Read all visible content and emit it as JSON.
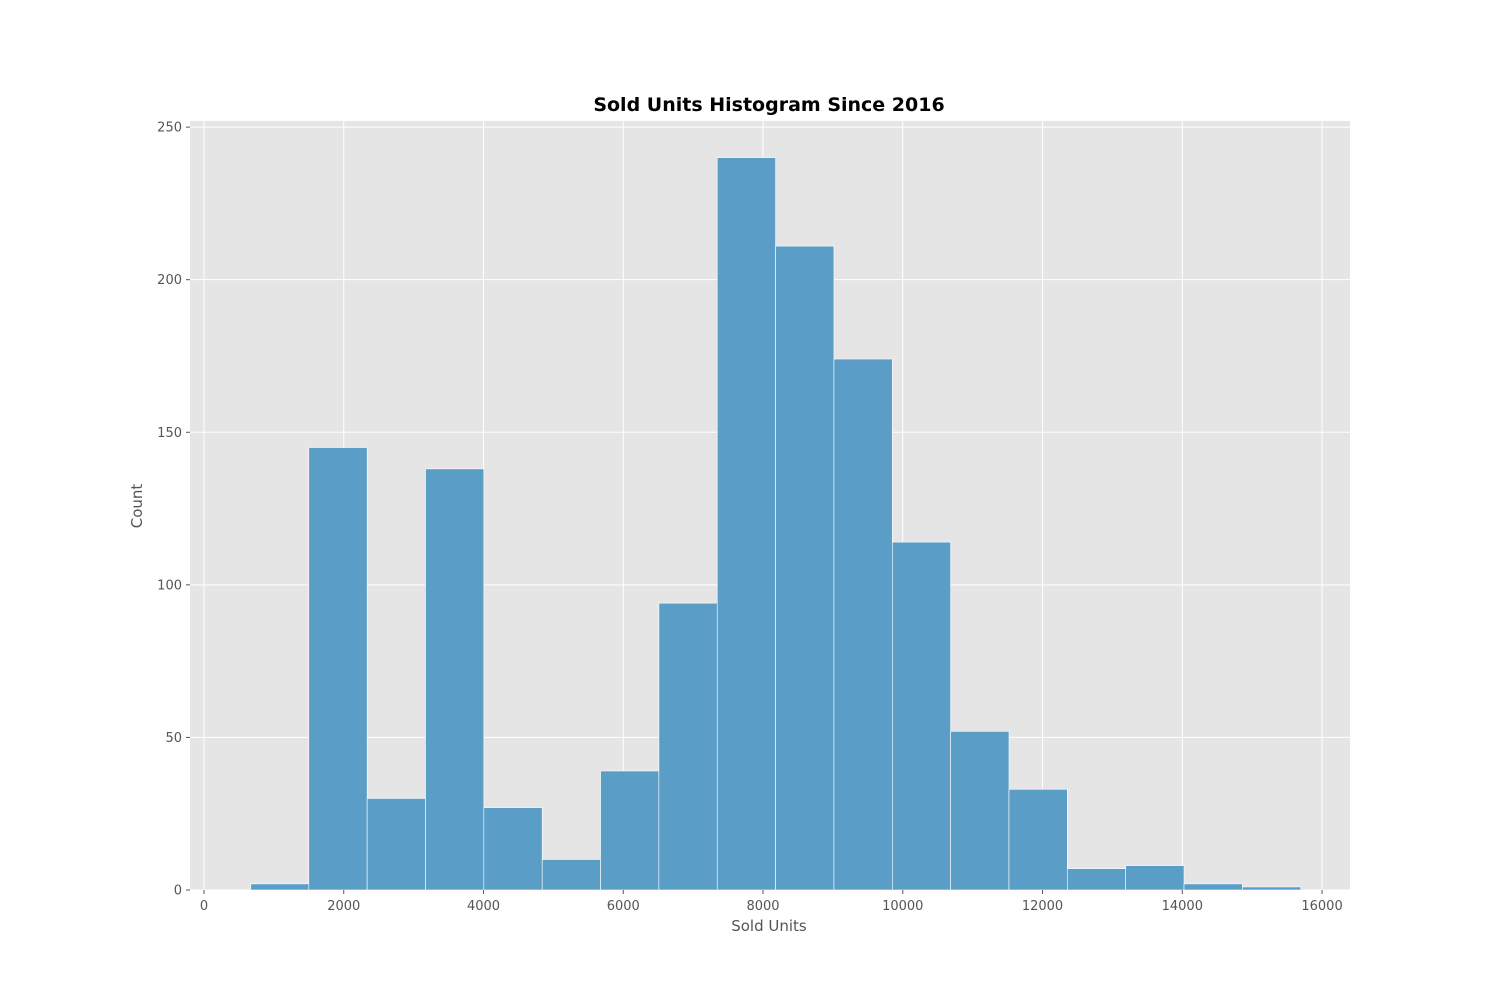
{
  "chart_data": {
    "type": "bar",
    "subtype": "histogram",
    "title": "Sold Units Histogram Since 2016",
    "xlabel": "Sold Units",
    "ylabel": "Count",
    "xlim": [
      -200,
      16400
    ],
    "ylim": [
      0,
      252
    ],
    "grid": true,
    "x_ticks": [
      0,
      2000,
      4000,
      6000,
      8000,
      10000,
      12000,
      14000,
      16000
    ],
    "y_ticks": [
      0,
      50,
      100,
      150,
      200,
      250
    ],
    "bin_edges": [
      670,
      1500,
      2335,
      3170,
      4005,
      4840,
      5675,
      6510,
      7345,
      8180,
      9015,
      9850,
      10685,
      11520,
      12355,
      13190,
      14025,
      14860,
      15695
    ],
    "values": [
      2,
      145,
      30,
      138,
      27,
      10,
      39,
      94,
      240,
      211,
      174,
      114,
      52,
      33,
      7,
      8,
      2,
      1
    ],
    "colors": {
      "bar": "#5a9ec7",
      "background": "#e5e5e5",
      "grid": "#ffffff"
    }
  }
}
